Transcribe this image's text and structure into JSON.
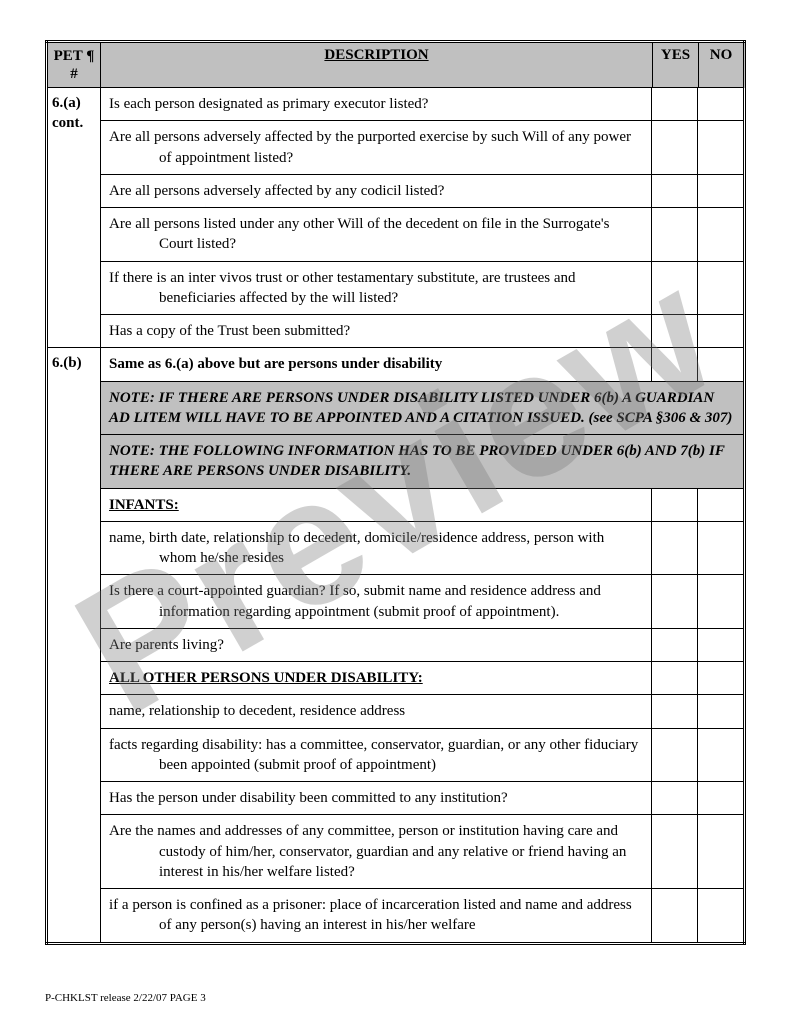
{
  "header": {
    "pet": "PET ¶ #",
    "desc": "DESCRIPTION",
    "yes": "YES",
    "no": "NO"
  },
  "section6a": {
    "label": "6.(a) cont.",
    "items": [
      "Is each person designated as primary executor listed?",
      "Are all persons adversely affected by the purported exercise by such Will of any power of appointment listed?",
      "Are all persons adversely affected by any codicil listed?",
      "Are all persons listed under any other Will of the decedent on file in the Surrogate's Court listed?",
      "If there is an inter vivos trust or other testamentary substitute, are trustees and beneficiaries affected by the will listed?",
      "Has a copy of the Trust been submitted?"
    ]
  },
  "section6b": {
    "label": "6.(b)",
    "heading": "Same as 6.(a) above but are persons under disability",
    "note1": "NOTE: IF THERE ARE PERSONS UNDER DISABILITY LISTED UNDER 6(b) A GUARDIAN AD LITEM WILL HAVE TO BE APPOINTED AND A CITATION ISSUED. (see SCPA §306 & 307)",
    "note2": "NOTE: THE FOLLOWING INFORMATION HAS TO BE PROVIDED UNDER 6(b) AND 7(b) IF THERE ARE PERSONS UNDER DISABILITY.",
    "infants_heading": "INFANTS:",
    "infants_items": [
      "name, birth date, relationship to decedent, domicile/residence address, person with whom he/she resides",
      "Is there a court-appointed guardian? If so, submit name and residence address and information regarding appointment (submit proof of appointment).",
      "Are parents living?"
    ],
    "other_heading": "ALL OTHER PERSONS UNDER DISABILITY:",
    "other_items": [
      "name, relationship to decedent, residence address",
      "facts regarding disability: has a committee, conservator, guardian, or any other fiduciary been appointed (submit proof of appointment)",
      "Has the person under disability been committed to any institution?",
      "Are the names and addresses of any committee, person or institution having care and custody of him/her, conservator, guardian and any relative or friend having an interest in his/her welfare listed?",
      "if a person is confined as a prisoner: place of incarceration listed and name and address of any person(s) having an interest in his/her welfare"
    ]
  },
  "watermark": "Preview",
  "footer": "P-CHKLST release 2/22/07   PAGE 3"
}
